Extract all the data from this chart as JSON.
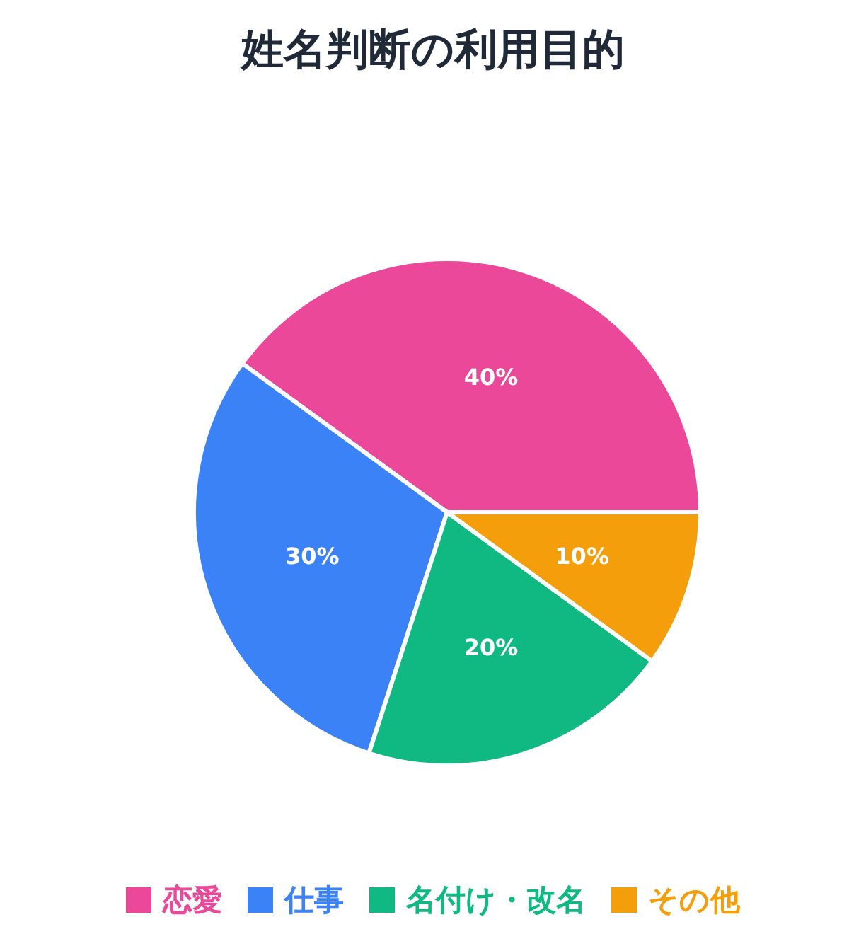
{
  "chart_data": {
    "type": "pie",
    "title": "姓名判断の利用目的",
    "categories": [
      "恋愛",
      "仕事",
      "名付け・改名",
      "その他"
    ],
    "values": [
      40,
      30,
      20,
      10
    ],
    "colors": [
      "#ec4899",
      "#3b82f6",
      "#10b981",
      "#f59e0b"
    ],
    "value_labels": [
      "40%",
      "30%",
      "20%",
      "10%"
    ],
    "legend": "bottom"
  }
}
